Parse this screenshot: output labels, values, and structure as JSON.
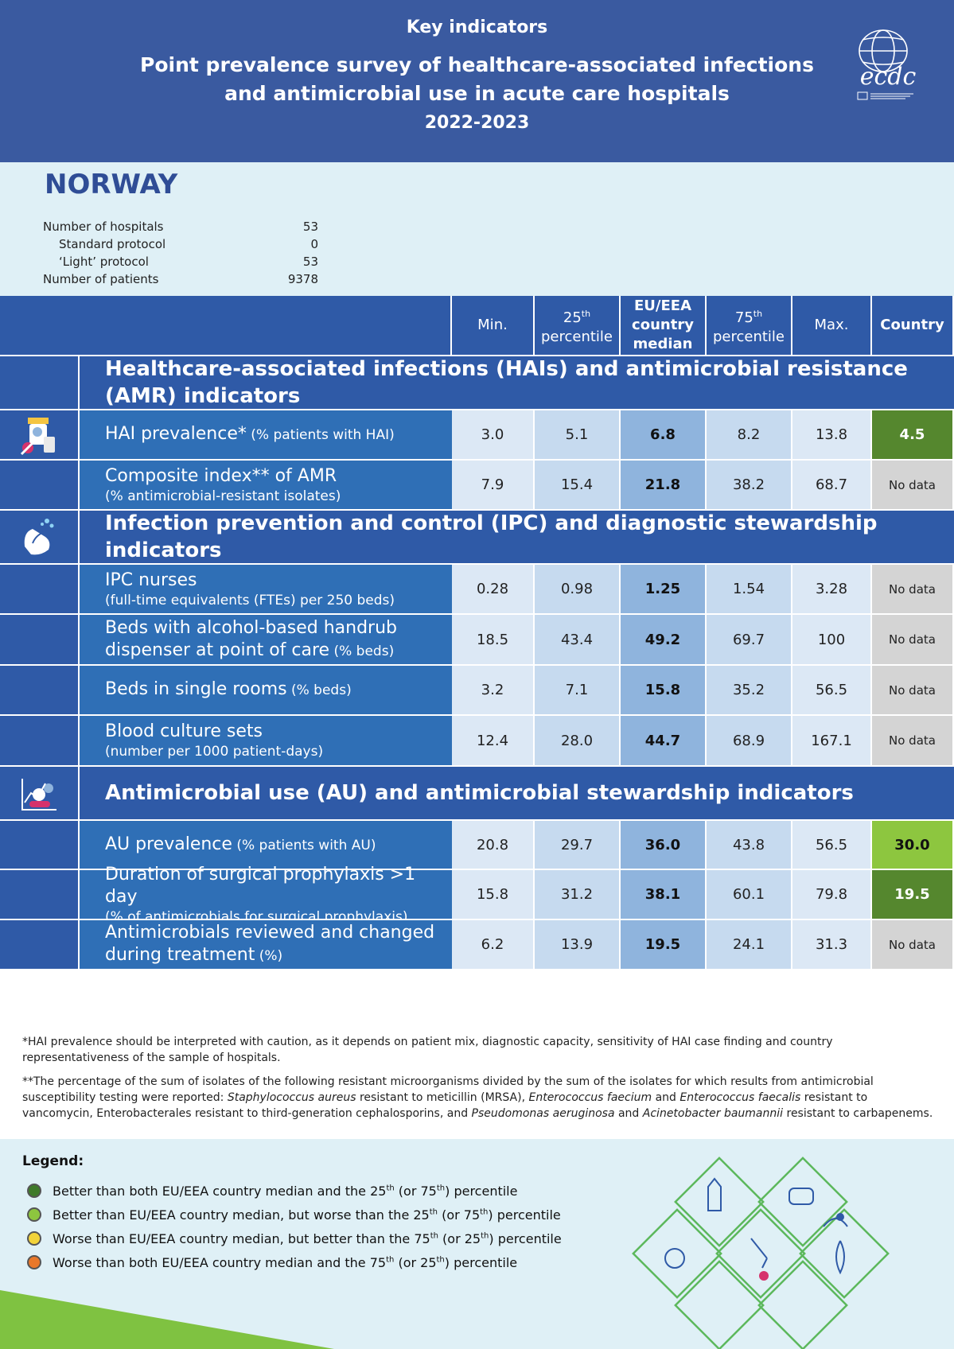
{
  "header": {
    "kicker": "Key indicators",
    "title_line1": "Point prevalence survey of healthcare-associated infections",
    "title_line2": "and antimicrobial use in acute care hospitals",
    "years": "2022-2023",
    "logo_text": "ecdc"
  },
  "country": {
    "name": "NORWAY",
    "stats": [
      {
        "label": "Number of hospitals",
        "value": "53",
        "indent": false
      },
      {
        "label": "Standard protocol",
        "value": "0",
        "indent": true
      },
      {
        "label": "‘Light’ protocol",
        "value": "53",
        "indent": true
      },
      {
        "label": "Number of patients",
        "value": "9378",
        "indent": false
      }
    ]
  },
  "columns": {
    "min": "Min.",
    "p25_num": "25",
    "p25_sup": "th",
    "p25_word": "percentile",
    "median_l1": "EU/EEA",
    "median_l2": "country",
    "median_l3": "median",
    "p75_num": "75",
    "p75_sup": "th",
    "p75_word": "percentile",
    "max": "Max.",
    "country": "Country"
  },
  "sections": [
    {
      "title_l1": "Healthcare-associated infections (HAIs) and antimicrobial resistance",
      "title_l2": "(AMR) indicators",
      "icon": "medicine-bottles-icon",
      "rows": [
        {
          "main": "HAI prevalence*",
          "main_small": " (% patients with HAI)",
          "sub": "",
          "min": "3.0",
          "p25": "5.1",
          "median": "6.8",
          "p75": "8.2",
          "max": "13.8",
          "country": "4.5",
          "status": "dark-green",
          "icon": "medicine-bottles-icon"
        },
        {
          "main": "Composite index** of AMR",
          "main_small": "",
          "sub": "(% antimicrobial-resistant isolates)",
          "min": "7.9",
          "p25": "15.4",
          "median": "21.8",
          "p75": "38.2",
          "max": "68.7",
          "country": "No data",
          "status": "nodata",
          "icon": ""
        }
      ]
    },
    {
      "title_l1": "Infection prevention and control (IPC) and diagnostic stewardship",
      "title_l2": "indicators",
      "icon": "hand-washing-icon",
      "rows": [
        {
          "main": "IPC nurses",
          "main_small": "",
          "sub": "(full-time equivalents (FTEs) per 250 beds)",
          "min": "0.28",
          "p25": "0.98",
          "median": "1.25",
          "p75": "1.54",
          "max": "3.28",
          "country": "No data",
          "status": "nodata"
        },
        {
          "main": "Beds with alcohol-based handrub",
          "main_small": "",
          "main2": "dispenser at point of care",
          "main2_small": " (% beds)",
          "sub": "",
          "min": "18.5",
          "p25": "43.4",
          "median": "49.2",
          "p75": "69.7",
          "max": "100",
          "country": "No data",
          "status": "nodata"
        },
        {
          "main": "Beds in single rooms",
          "main_small": " (% beds)",
          "sub": "",
          "min": "3.2",
          "p25": "7.1",
          "median": "15.8",
          "p75": "35.2",
          "max": "56.5",
          "country": "No data",
          "status": "nodata"
        },
        {
          "main": "Blood culture sets",
          "main_small": "",
          "sub": "(number per 1000 patient-days)",
          "min": "12.4",
          "p25": "28.0",
          "median": "44.7",
          "p75": "68.9",
          "max": "167.1",
          "country": "No data",
          "status": "nodata"
        }
      ]
    },
    {
      "title_l1": "Antimicrobial use (AU) and antimicrobial stewardship indicators",
      "title_l2": "",
      "icon": "pills-chart-icon",
      "rows": [
        {
          "main": "AU prevalence",
          "main_small": " (% patients with AU)",
          "sub": "",
          "min": "20.8",
          "p25": "29.7",
          "median": "36.0",
          "p75": "43.8",
          "max": "56.5",
          "country": "30.0",
          "status": "light-green"
        },
        {
          "main": "Duration of surgical prophylaxis >1 day",
          "main_small": "",
          "sub": "(% of antimicrobials for surgical prophylaxis)",
          "min": "15.8",
          "p25": "31.2",
          "median": "38.1",
          "p75": "60.1",
          "max": "79.8",
          "country": "19.5",
          "status": "dark-green"
        },
        {
          "main": "Antimicrobials reviewed and changed",
          "main_small": "",
          "main2": "during treatment",
          "main2_small": " (%)",
          "sub": "",
          "min": "6.2",
          "p25": "13.9",
          "median": "19.5",
          "p75": "24.1",
          "max": "31.3",
          "country": "No data",
          "status": "nodata"
        }
      ]
    }
  ],
  "footnotes": {
    "note1": "*HAI prevalence should be interpreted with caution, as it depends on patient mix, diagnostic capacity, sensitivity of HAI case finding and country representativeness of the sample of hospitals.",
    "note2_a": "**The percentage of the sum of isolates of the following resistant microorganisms divided by the sum of the isolates for which results from antimicrobial susceptibility testing were reported: ",
    "note2_i1": "Staphylococcus aureus",
    "note2_b": " resistant to meticillin (MRSA), ",
    "note2_i2": "Enterococcus faecium",
    "note2_c": " and ",
    "note2_i3": "Enterococcus faecalis",
    "note2_d": " resistant to vancomycin, Enterobacterales resistant to third-generation cephalosporins, and ",
    "note2_i4": "Pseudomonas aeruginosa",
    "note2_e": " and ",
    "note2_i5": "Acinetobacter baumannii",
    "note2_f": " resistant to carbapenems."
  },
  "legend": {
    "title": "Legend:",
    "items": [
      {
        "color": "#3f7a2a",
        "text_a": "Better than both EU/EEA country median and the 25",
        "sup1": "th",
        "text_b": " (or 75",
        "sup2": "th",
        "text_c": ") percentile"
      },
      {
        "color": "#8dc63f",
        "text_a": "Better than EU/EEA country median, but worse than the 25",
        "sup1": "th",
        "text_b": " (or 75",
        "sup2": "th",
        "text_c": ") percentile"
      },
      {
        "color": "#f2d33a",
        "text_a": "Worse than EU/EEA country median, but better than the 75",
        "sup1": "th",
        "text_b": " (or 25",
        "sup2": "th",
        "text_c": ") percentile"
      },
      {
        "color": "#e8782a",
        "text_a": "Worse than both EU/EEA country median and the 75",
        "sup1": "th",
        "text_b": " (or 25",
        "sup2": "th",
        "text_c": ") percentile"
      }
    ]
  },
  "colors": {
    "header_bg": "#3a5aa0",
    "label_bg": "#2f6fb6",
    "median_bg": "#8fb4dd",
    "dark_green": "#55872e",
    "light_green": "#8dc63f",
    "no_data": "#d4d4d4"
  }
}
